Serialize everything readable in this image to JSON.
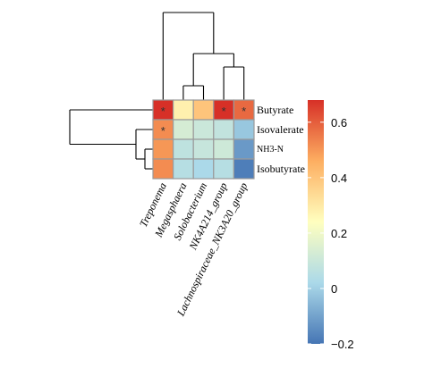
{
  "chart_data": {
    "type": "heatmap",
    "rows": [
      "Butyrate",
      "Isovalerate",
      "NH3-N",
      "Isobutyrate"
    ],
    "columns": [
      "Treponema",
      "Megasphaera",
      "Solobacterium",
      "NK4A214_group",
      "Lachnospiraceae_NK3A20_group"
    ],
    "values": [
      [
        0.68,
        0.28,
        0.4,
        0.68,
        0.58
      ],
      [
        0.52,
        0.13,
        0.1,
        0.08,
        -0.02
      ],
      [
        0.5,
        0.07,
        0.09,
        0.11,
        -0.12
      ],
      [
        0.52,
        0.05,
        0.02,
        0.05,
        -0.18
      ]
    ],
    "significance": [
      [
        "*",
        "",
        "",
        "*",
        "*"
      ],
      [
        "*",
        "",
        "",
        "",
        ""
      ],
      [
        "",
        "",
        "",
        "",
        ""
      ],
      [
        "",
        "",
        "",
        "",
        ""
      ]
    ],
    "colorbar": {
      "range": [
        -0.2,
        0.68
      ],
      "ticks": [
        -0.2,
        0,
        0.2,
        0.4,
        0.6
      ],
      "tick_labels": [
        "−0.2",
        "0",
        "0.2",
        "0.4",
        "0.6"
      ],
      "colors": [
        "#4575b4",
        "#abd9e9",
        "#ffffbf",
        "#fdae61",
        "#d73027"
      ]
    },
    "row_dendrogram": "left",
    "column_dendrogram": "top",
    "grid": true,
    "legend": "right"
  }
}
